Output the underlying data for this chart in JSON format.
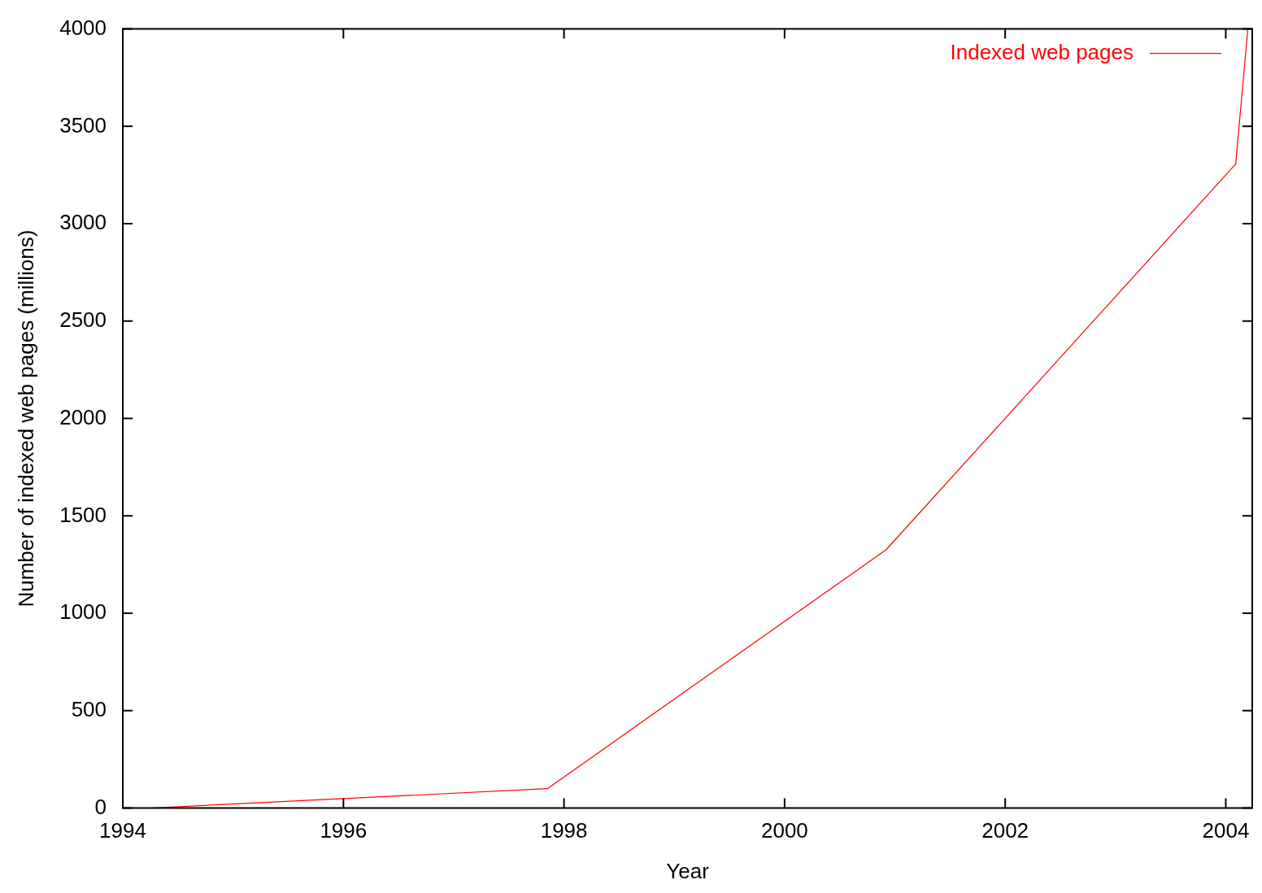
{
  "chart_data": {
    "type": "line",
    "xlabel": "Year",
    "ylabel": "Number of indexed web pages (millions)",
    "series": [
      {
        "name": "Indexed web pages",
        "color": "#ff0000",
        "x": [
          1994.25,
          1997.85,
          2000.92,
          2004.09,
          2004.2
        ],
        "values": [
          0,
          100,
          1326,
          3307,
          4000
        ]
      }
    ],
    "xlim": [
      1994,
      2004.24
    ],
    "xticks": [
      1994,
      1996,
      1998,
      2000,
      2002,
      2004
    ],
    "ylim": [
      0,
      4000
    ],
    "yticks": [
      0,
      500,
      1000,
      1500,
      2000,
      2500,
      3000,
      3500,
      4000
    ],
    "grid": false,
    "legend": "top right",
    "marker": "none",
    "line_style": "solid"
  }
}
